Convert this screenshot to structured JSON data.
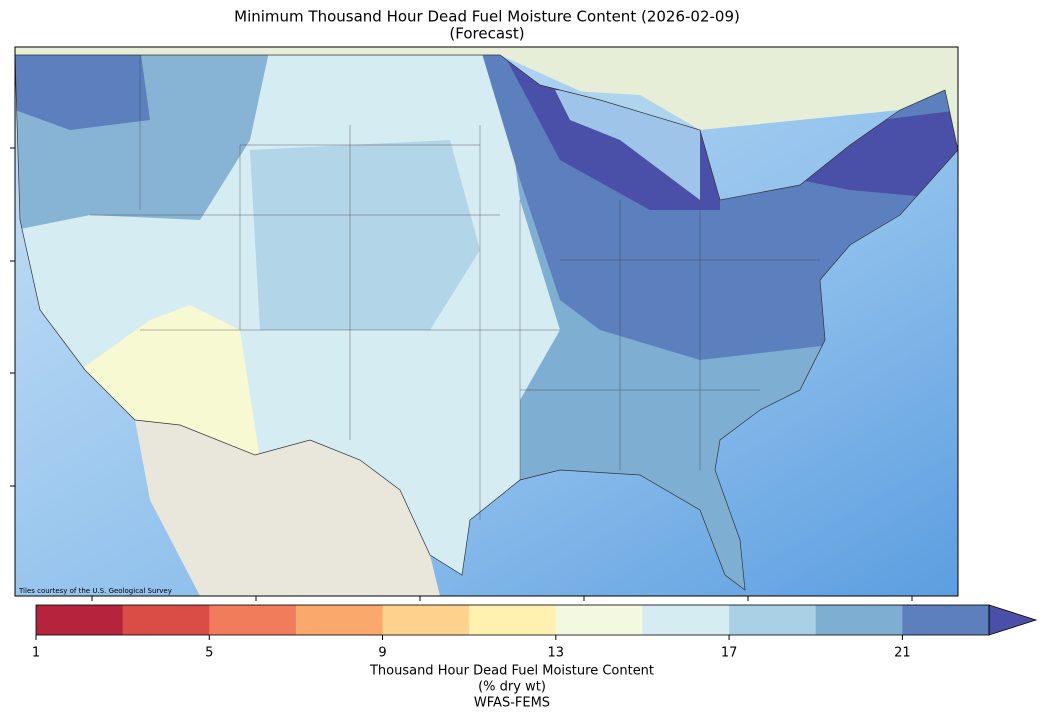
{
  "title": [
    "Minimum Thousand Hour Dead Fuel Moisture Content (2026-02-09)",
    "(Forecast)"
  ],
  "attribution": "Tiles courtesy of the U.S. Geological Survey",
  "colorbar": {
    "bins": [
      1,
      3,
      5,
      7,
      9,
      11,
      13,
      15,
      17,
      19,
      21,
      23
    ],
    "colors": [
      "#b5243c",
      "#d94d46",
      "#f07c5b",
      "#fba86c",
      "#fed28c",
      "#fff2b0",
      "#f3f9e0",
      "#d5ecf3",
      "#a9d0e4",
      "#7eaed1",
      "#5b80bd"
    ],
    "extend_color": "#4a4fa8",
    "ticks": [
      1,
      5,
      9,
      13,
      17,
      21
    ],
    "label": [
      "Thousand Hour Dead Fuel Moisture Content",
      "(% dry wt)",
      "WFAS-FEMS"
    ]
  }
}
